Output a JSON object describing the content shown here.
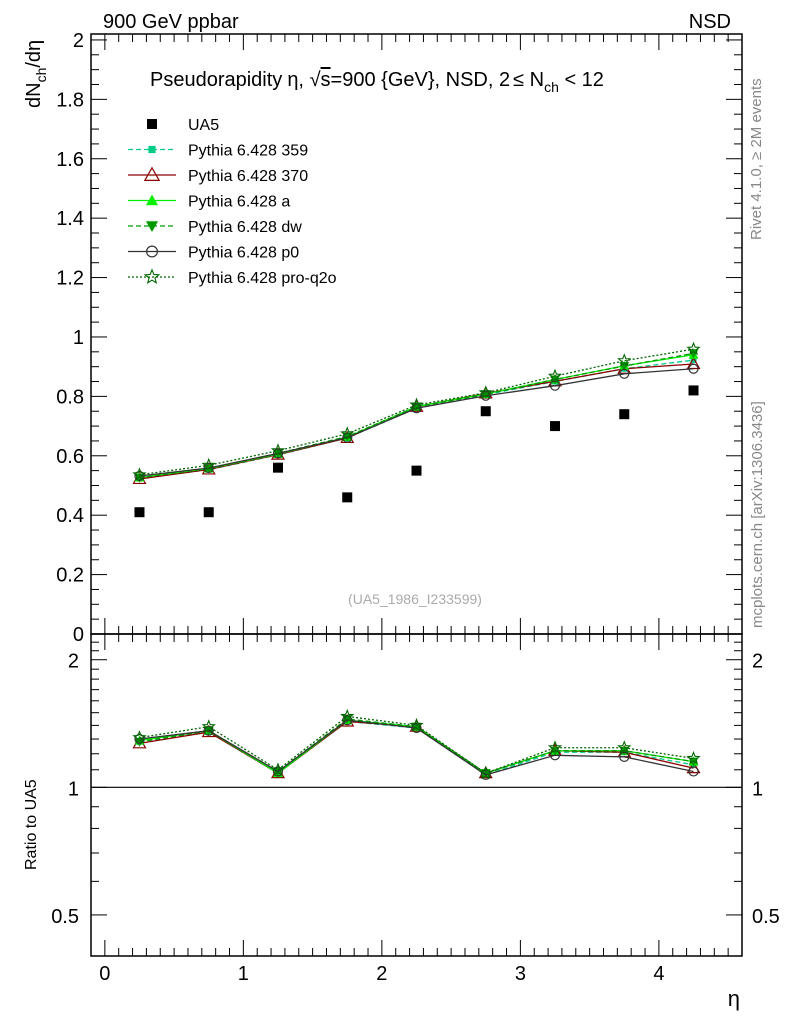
{
  "header": {
    "left": "900 GeV ppbar",
    "right": "NSD"
  },
  "side_labels": {
    "rivet": "Rivet 4.1.0, ≥ 2M events",
    "mcplots": "mcplots.cern.ch [arXiv:1306.3436]"
  },
  "chart_data": [
    {
      "type": "scatter",
      "title_parts": {
        "a": "Pseudorapidity",
        "b": "η, ",
        "sqrt": "√",
        "s": "s",
        "c": "=900 {GeV}, NSD, 2",
        "le": "≤",
        "d": " N",
        "sub": "ch",
        "e": " < 12"
      },
      "ylabel": {
        "a": "dN",
        "sub": "ch",
        "b": "/dη"
      },
      "xlabel": "η",
      "watermark": "(UA5_1986_I233599)",
      "xlim": [
        -0.1,
        4.6
      ],
      "ylim": [
        0,
        2.02
      ],
      "x_ticks": [
        0,
        1,
        2,
        3,
        4
      ],
      "x_tick_labels": [
        "0",
        "1",
        "2",
        "3",
        "4"
      ],
      "y_ticks": [
        0,
        0.2,
        0.4,
        0.6,
        0.8,
        1,
        1.2,
        1.4,
        1.6,
        1.8,
        2
      ],
      "y_tick_labels": [
        "0",
        "0.2",
        "0.4",
        "0.6",
        "0.8",
        "1",
        "1.2",
        "1.4",
        "1.6",
        "1.8",
        "2"
      ],
      "x": [
        0.25,
        0.75,
        1.25,
        1.75,
        2.25,
        2.75,
        3.25,
        3.75,
        4.25
      ],
      "data": {
        "name": "UA5",
        "values": [
          0.41,
          0.41,
          0.56,
          0.46,
          0.55,
          0.75,
          0.7,
          0.74,
          0.82
        ]
      },
      "series": [
        {
          "name": "Pythia 6.428 359",
          "color": "#00cc88",
          "dash": "5,3",
          "marker": "square",
          "values": [
            0.525,
            0.553,
            0.603,
            0.66,
            0.76,
            0.806,
            0.85,
            0.893,
            0.922
          ]
        },
        {
          "name": "Pythia 6.428 370",
          "color": "#8b0000",
          "dash": "",
          "marker": "triangle-open",
          "values": [
            0.522,
            0.554,
            0.604,
            0.66,
            0.765,
            0.81,
            0.851,
            0.893,
            0.909
          ]
        },
        {
          "name": "Pythia 6.428 a",
          "color": "#00ee00",
          "dash": "",
          "marker": "triangle",
          "values": [
            0.527,
            0.557,
            0.606,
            0.663,
            0.766,
            0.808,
            0.857,
            0.903,
            0.94
          ]
        },
        {
          "name": "Pythia 6.428 dw",
          "color": "#009900",
          "dash": "5,3",
          "marker": "triangle-down",
          "values": [
            0.526,
            0.557,
            0.608,
            0.665,
            0.765,
            0.807,
            0.857,
            0.902,
            0.945
          ]
        },
        {
          "name": "Pythia 6.428 p0",
          "color": "#333333",
          "dash": "",
          "marker": "circle-open",
          "values": [
            0.532,
            0.559,
            0.608,
            0.661,
            0.76,
            0.802,
            0.836,
            0.876,
            0.893
          ]
        },
        {
          "name": "Pythia 6.428 pro-q2o",
          "color": "#006600",
          "dash": "2,2",
          "marker": "star",
          "values": [
            0.536,
            0.568,
            0.617,
            0.674,
            0.771,
            0.812,
            0.868,
            0.92,
            0.959
          ]
        }
      ]
    },
    {
      "type": "line",
      "ylabel": "Ratio to UA5",
      "ylim": [
        0.4,
        2.3
      ],
      "y_scale": "log",
      "y_ticks": [
        0.5,
        1,
        2
      ],
      "y_tick_labels": [
        "0.5",
        "1",
        "2"
      ],
      "reference": 1,
      "ratios": [
        [
          1.28,
          1.35,
          1.08,
          1.43,
          1.38,
          1.07,
          1.21,
          1.21,
          1.13
        ],
        [
          1.27,
          1.35,
          1.08,
          1.43,
          1.39,
          1.08,
          1.22,
          1.21,
          1.11
        ],
        [
          1.29,
          1.36,
          1.08,
          1.44,
          1.39,
          1.08,
          1.22,
          1.22,
          1.15
        ],
        [
          1.28,
          1.36,
          1.09,
          1.45,
          1.39,
          1.08,
          1.22,
          1.22,
          1.15
        ],
        [
          1.3,
          1.36,
          1.09,
          1.44,
          1.38,
          1.07,
          1.19,
          1.18,
          1.09
        ],
        [
          1.31,
          1.39,
          1.1,
          1.47,
          1.4,
          1.08,
          1.24,
          1.24,
          1.17
        ]
      ]
    }
  ]
}
